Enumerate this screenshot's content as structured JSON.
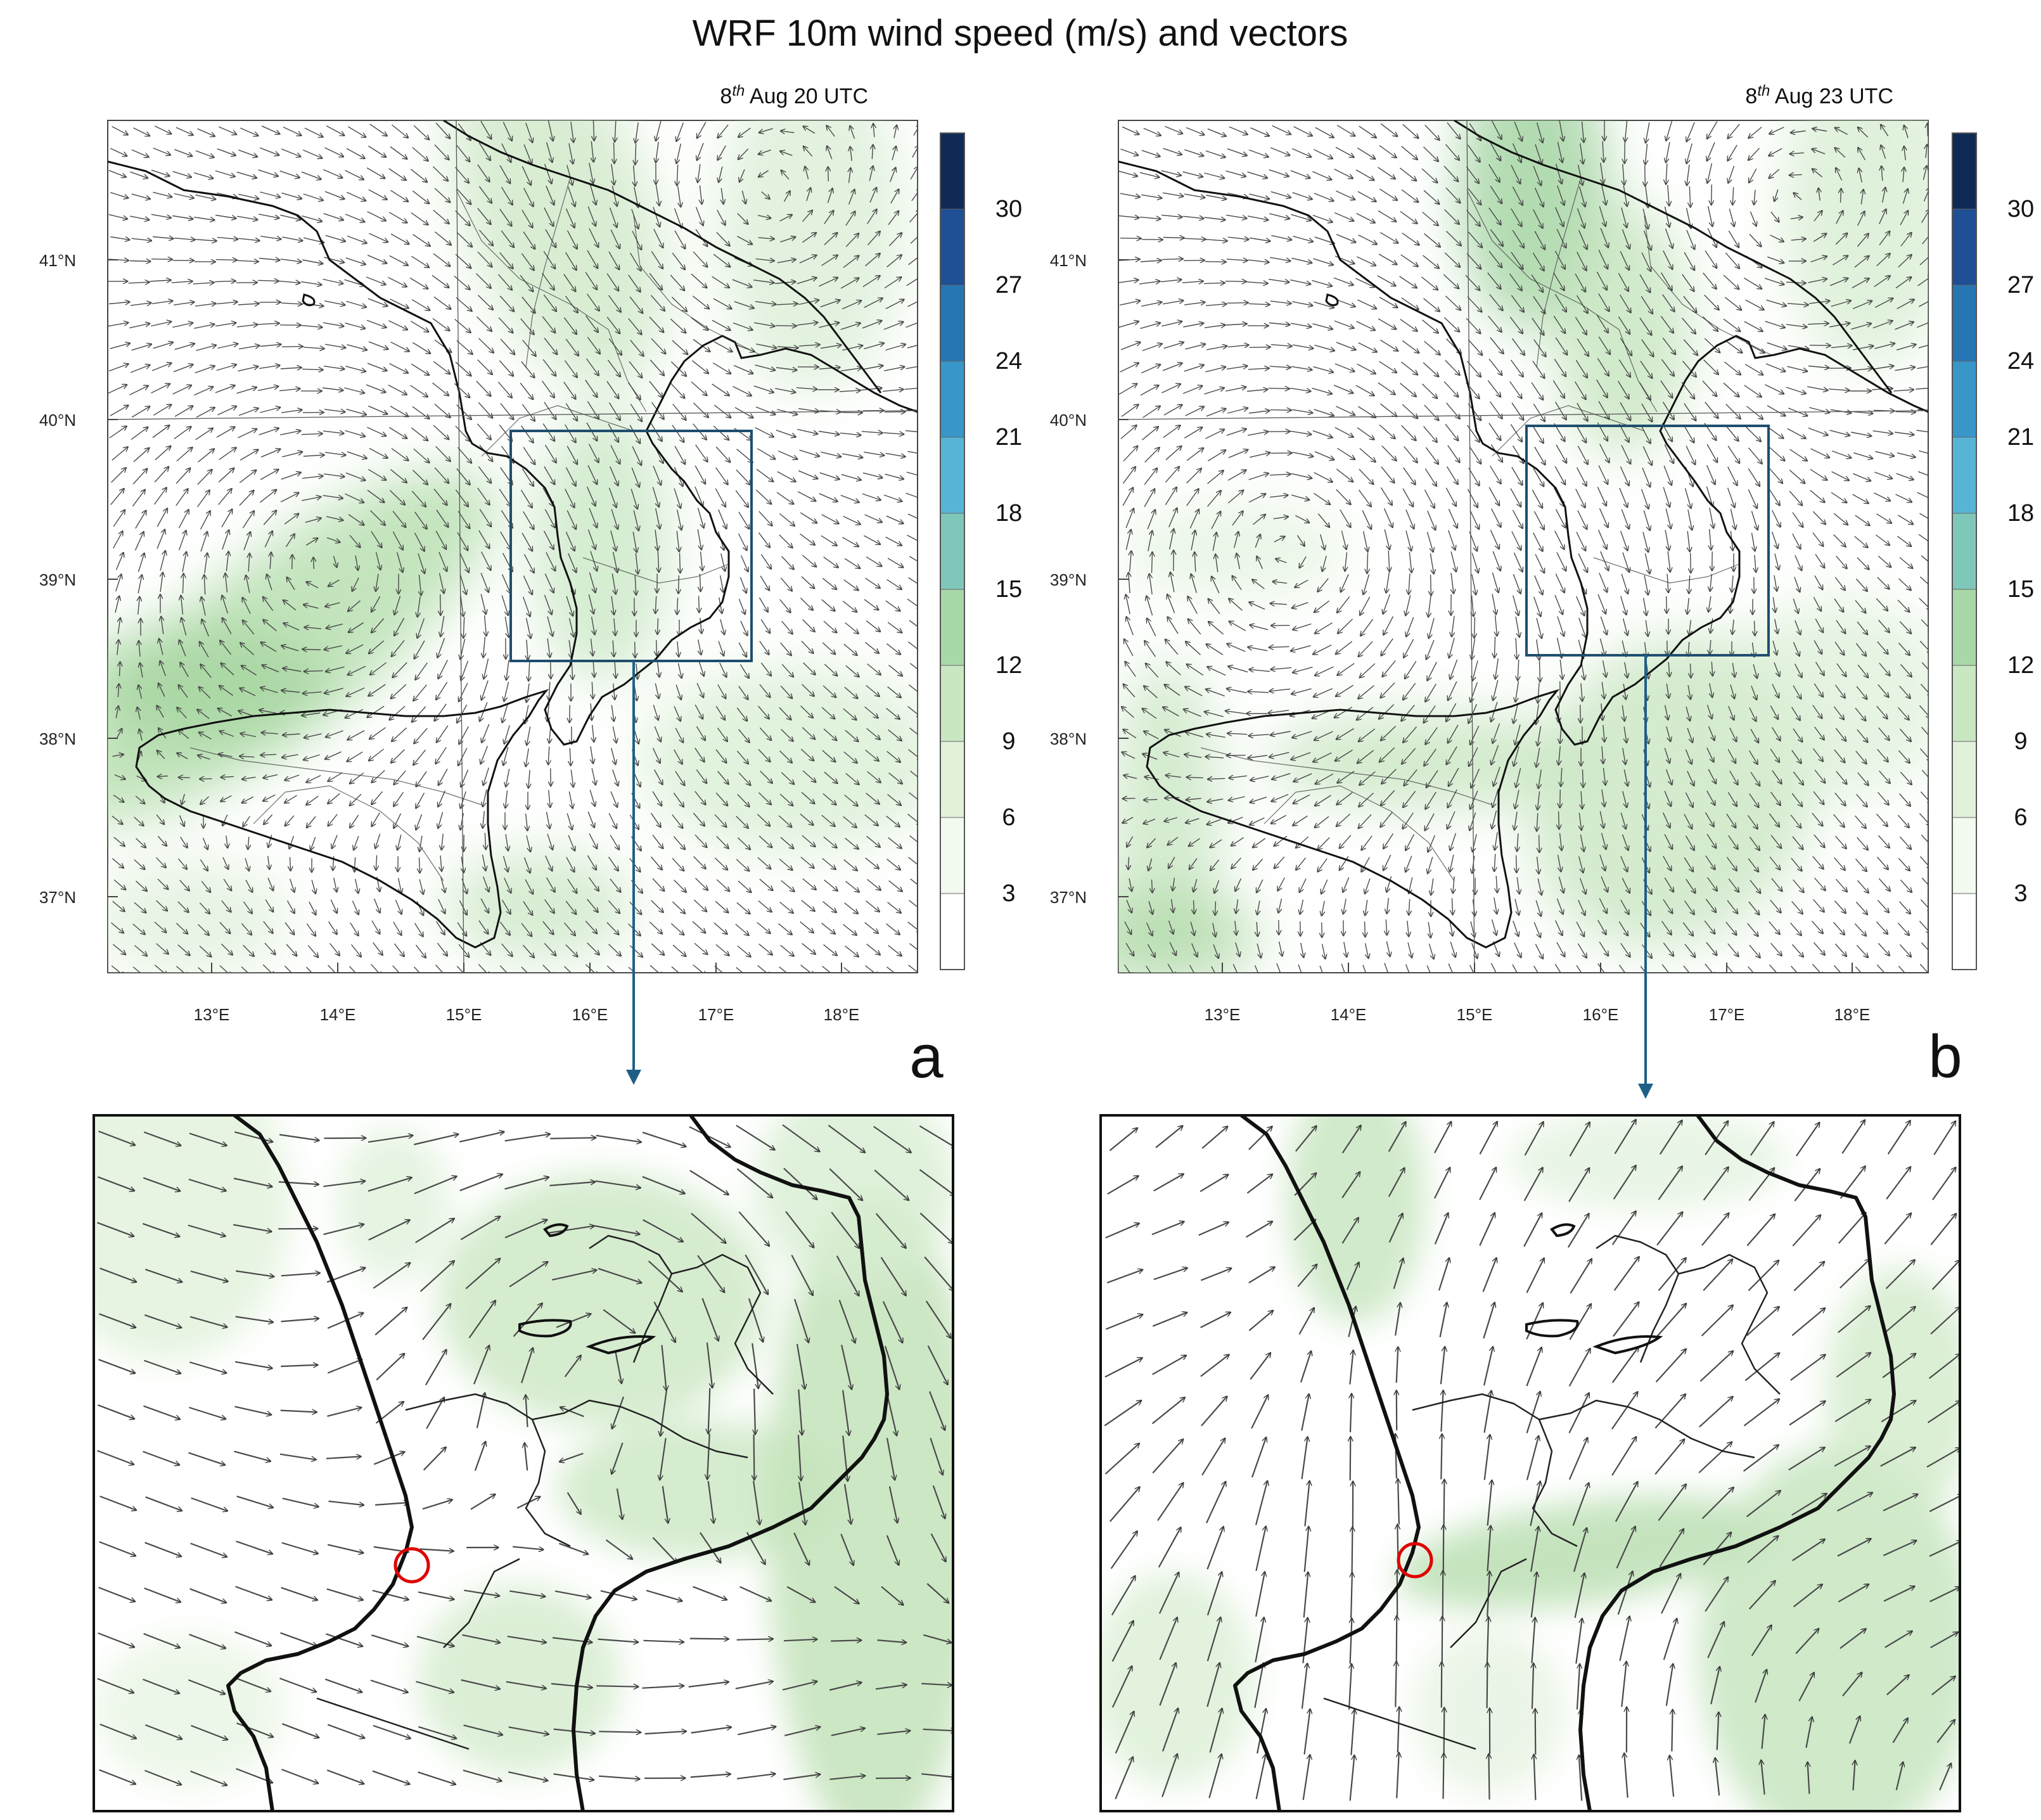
{
  "title": "WRF 10m  wind speed (m/s) and vectors",
  "panels": [
    {
      "id": "a",
      "letter": "a",
      "time_day": "8",
      "time_sup": "th",
      "time_rest": " Aug 20 UTC",
      "bbox_deg": {
        "lon_min": 15.4,
        "lon_max": 17.3,
        "lat_min": 38.5,
        "lat_max": 39.95
      }
    },
    {
      "id": "b",
      "letter": "b",
      "time_day": "8",
      "time_sup": "th",
      "time_rest": " Aug 23 UTC",
      "bbox_deg": {
        "lon_min": 15.45,
        "lon_max": 17.35,
        "lat_min": 38.55,
        "lat_max": 39.98
      }
    }
  ],
  "map_extent": {
    "lon_min": 12.2,
    "lon_max": 18.6,
    "lat_min": 36.55,
    "lat_max": 41.9
  },
  "lon_ticks": [
    "13°E",
    "14°E",
    "15°E",
    "16°E",
    "17°E",
    "18°E"
  ],
  "lat_ticks": [
    "41°N",
    "40°N",
    "39°N",
    "38°N",
    "37°N"
  ],
  "colorbar": {
    "labels": [
      "3",
      "6",
      "9",
      "12",
      "15",
      "18",
      "21",
      "24",
      "27",
      "30"
    ],
    "colors": [
      "#ffffff",
      "#f3faf0",
      "#e2f2da",
      "#c9e7c1",
      "#a9d8a8",
      "#7fc7b9",
      "#56b5d6",
      "#3896c8",
      "#2576b3",
      "#1f4f94",
      "#0f2a55"
    ]
  },
  "colors": {
    "coast": "#111111",
    "box": "#1f4e6e",
    "connector": "#1f5f86",
    "site_marker": "#e00000",
    "vector": "#555555"
  }
}
